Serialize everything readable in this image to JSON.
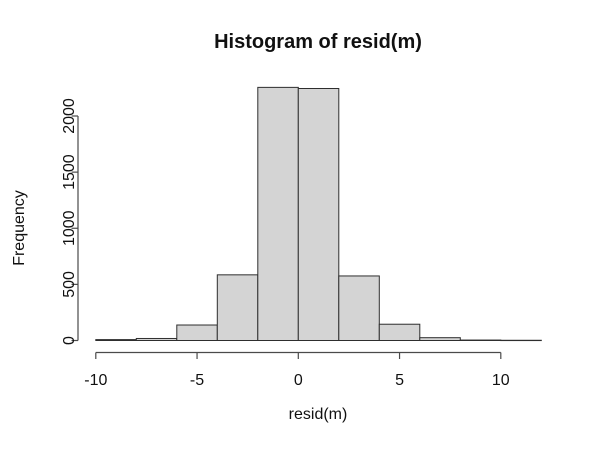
{
  "figure": {
    "title": "Histogram of resid(m)",
    "xlabel": "resid(m)",
    "ylabel": "Frequency"
  },
  "colors": {
    "background": "#ffffff",
    "bar_fill": "#d4d4d4",
    "bar_border": "#2e2e2e",
    "axis": "#4a4a4a",
    "text": "#111111"
  },
  "chart_data": {
    "type": "bar",
    "subtype": "histogram",
    "title": "Histogram of resid(m)",
    "xlabel": "resid(m)",
    "ylabel": "Frequency",
    "bin_edges": [
      -10,
      -8,
      -6,
      -4,
      -2,
      0,
      2,
      4,
      6,
      8,
      10,
      12
    ],
    "counts": [
      8,
      18,
      138,
      585,
      2255,
      2245,
      575,
      145,
      25,
      4,
      2
    ],
    "x_ticks": [
      -10,
      -5,
      0,
      5,
      10
    ],
    "y_ticks": [
      0,
      500,
      1000,
      1500,
      2000
    ],
    "xlim": [
      -10.9,
      12.9
    ],
    "ylim": [
      0,
      2255
    ],
    "grid": false,
    "legend": "none"
  }
}
